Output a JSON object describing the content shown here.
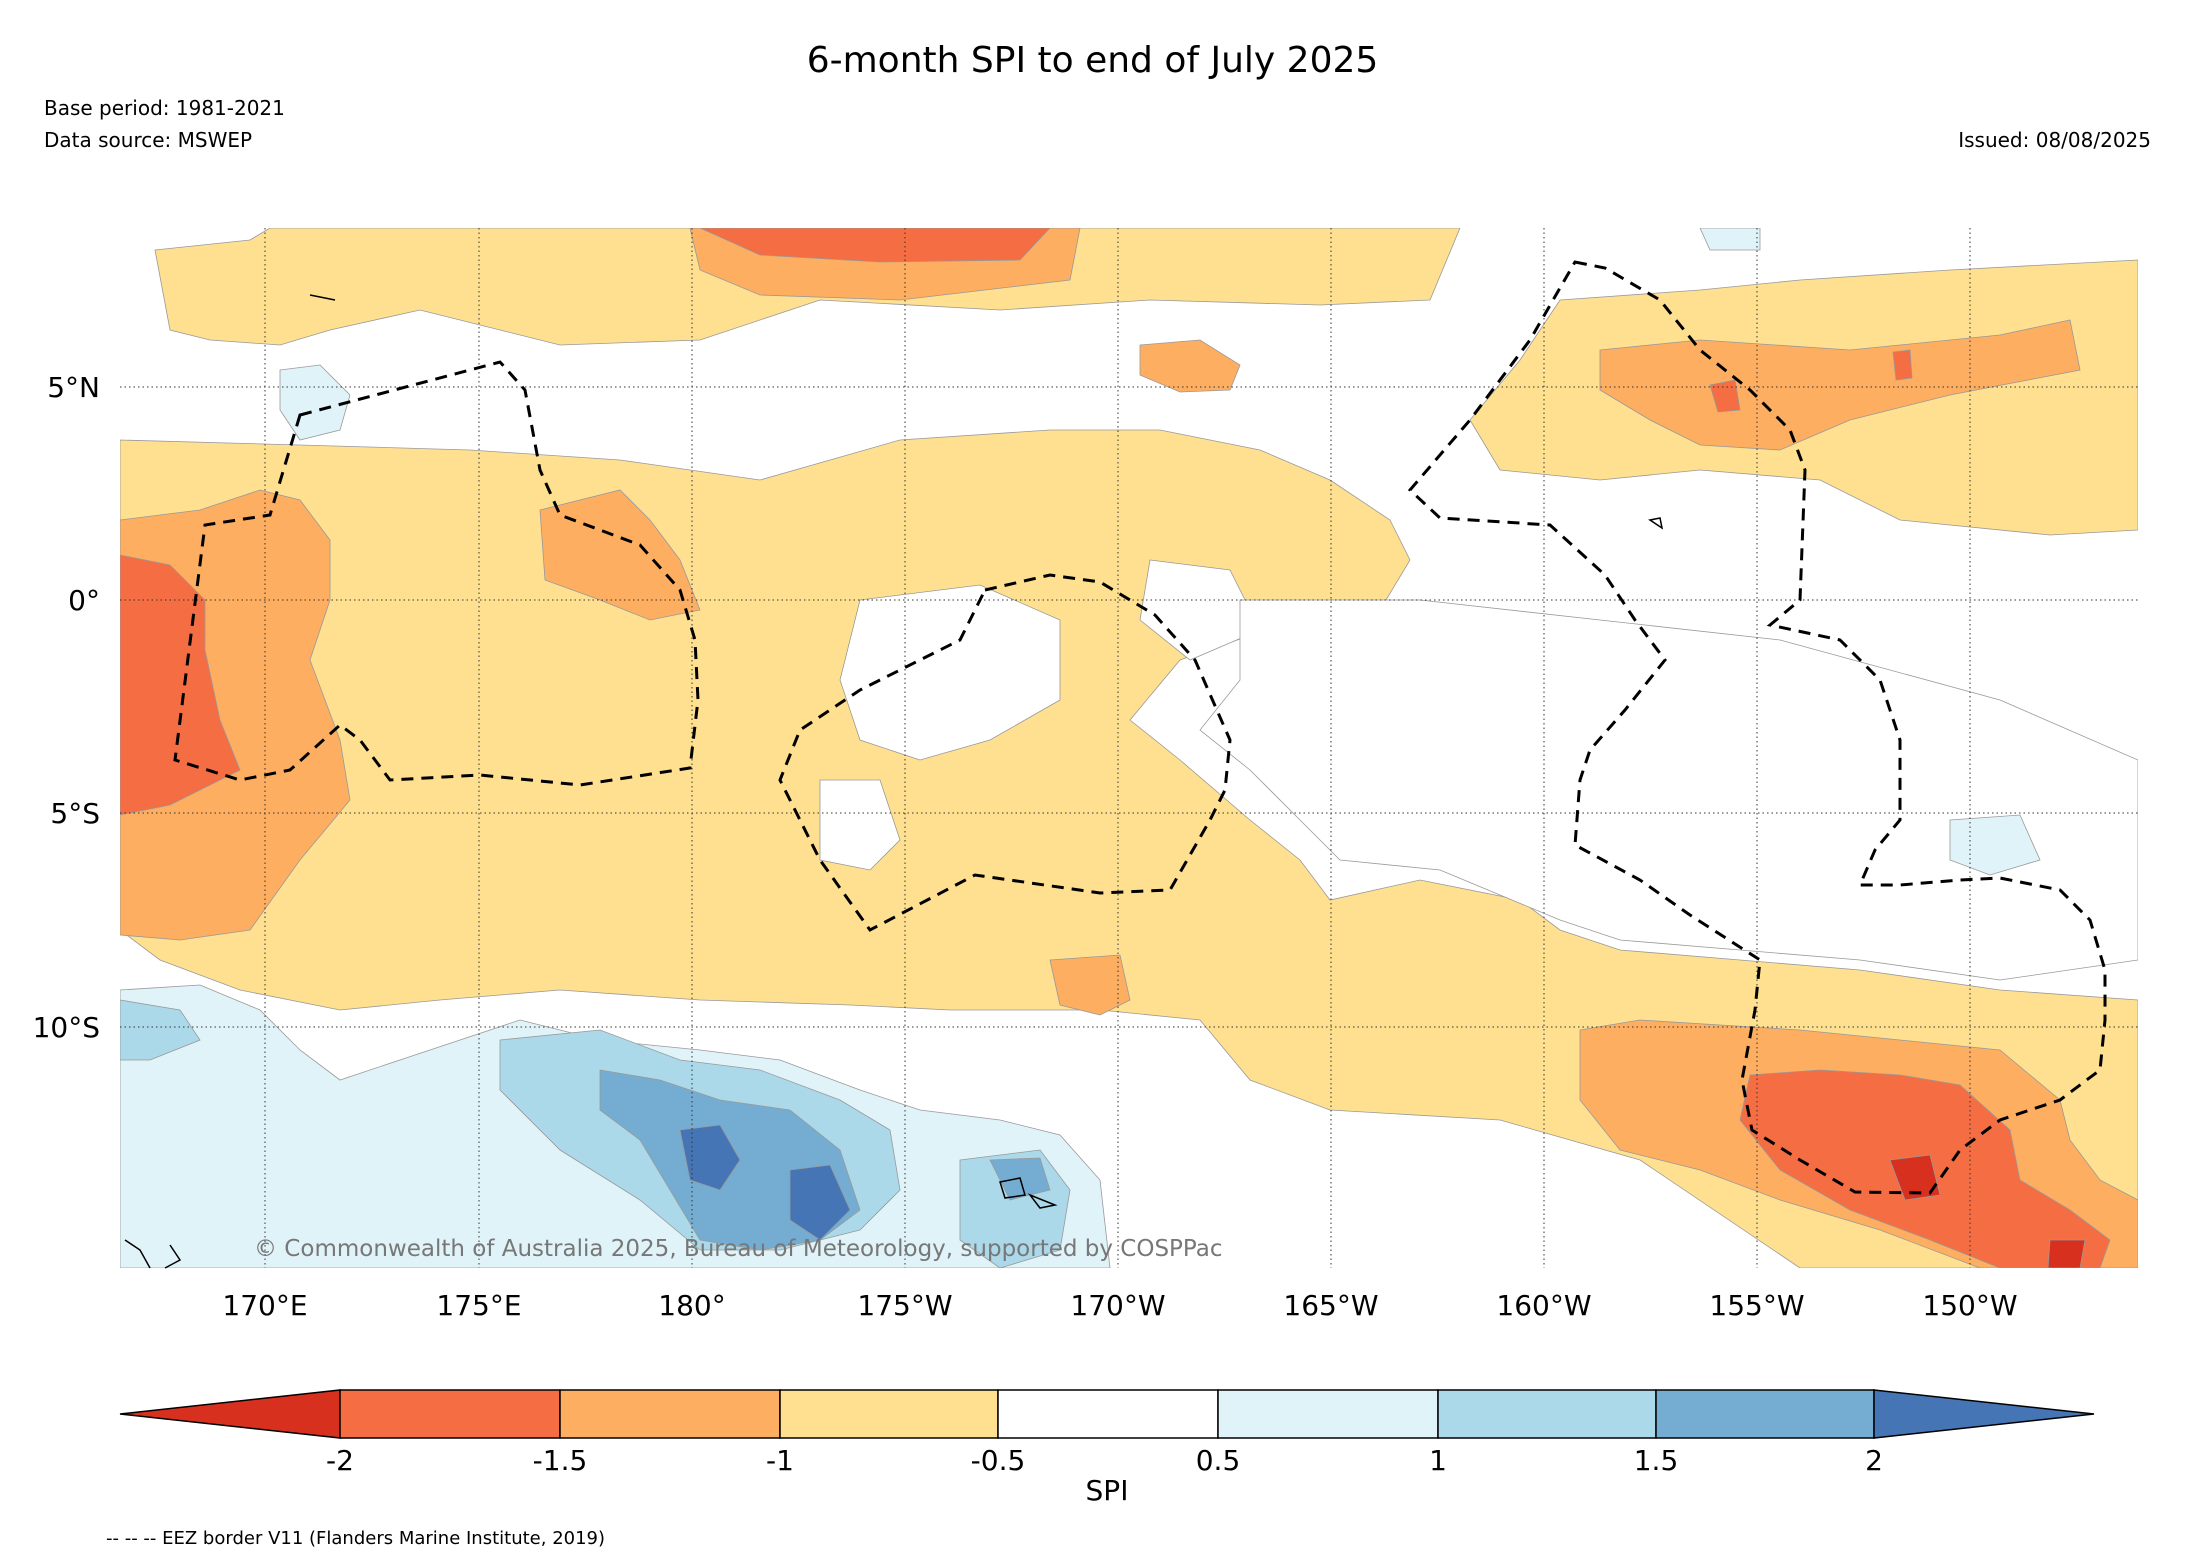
{
  "header": {
    "title": "6-month SPI to end of July 2025",
    "base_period": "Base period: 1981-2021",
    "data_source": "Data source: MSWEP",
    "issued": "Issued: 08/08/2025"
  },
  "map": {
    "lon_labels": [
      "170°E",
      "175°E",
      "180°",
      "175°W",
      "170°W",
      "165°W",
      "160°W",
      "155°W",
      "150°W"
    ],
    "lat_labels": [
      "5°N",
      "0°",
      "5°S",
      "10°S"
    ],
    "copyright": "© Commonwealth of Australia 2025, Bureau of Meteorology, supported by COSPPac",
    "colors": {
      "le_-2": "#d7301f",
      "-2_-1.5": "#f46d43",
      "-1.5_-1": "#fdae61",
      "-1_-0.5": "#fee090",
      "-0.5_0.5": "#ffffff",
      "0.5_1": "#e0f3f8",
      "1_1.5": "#abd9e9",
      "1.5_2": "#74add1",
      "ge_2": "#4575b4"
    }
  },
  "colorbar": {
    "label": "SPI",
    "ticks": [
      "-2",
      "-1.5",
      "-1",
      "-0.5",
      "0.5",
      "1",
      "1.5",
      "2"
    ]
  },
  "footer": {
    "eez_note": "-- -- -- EEZ border V11 (Flanders Marine Institute, 2019)"
  }
}
